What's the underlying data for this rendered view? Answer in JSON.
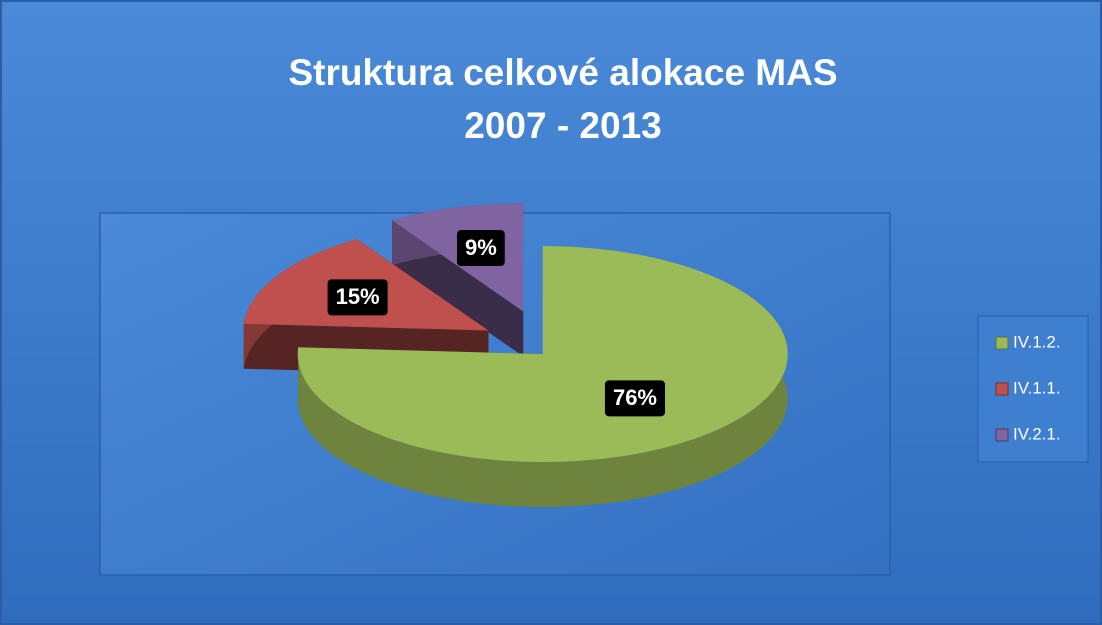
{
  "chart_data": {
    "type": "pie3d",
    "title": [
      "Struktura celkové alokace MAS",
      "2007 - 2013"
    ],
    "categories": [
      "IV.1.2.",
      "IV.1.1.",
      "IV.2.1."
    ],
    "values": [
      76,
      15,
      9
    ],
    "value_labels": [
      "76%",
      "15%",
      "9%"
    ],
    "colors": [
      "#9bbb59",
      "#c0504d",
      "#8064a2"
    ],
    "legend": "right"
  }
}
